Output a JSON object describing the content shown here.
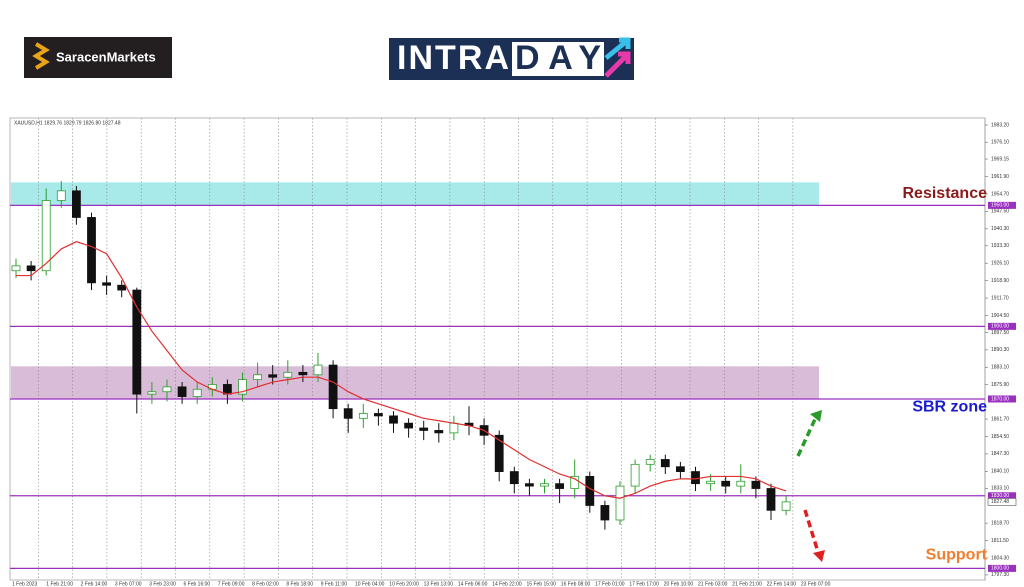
{
  "brand": {
    "name": "SaracenMarkets",
    "banner_left": "INTRA",
    "banner_right": "DAY"
  },
  "chart_data": {
    "type": "candlestick",
    "title": "XAUUSD,H1  1829.76 1829.79 1826.80 1827.48",
    "categories": [
      "1 Feb 2023",
      "1 Feb 21:00",
      "2 Feb 14:00",
      "3 Feb 07:00",
      "3 Feb 23:00",
      "6 Feb 16:00",
      "7 Feb 09:00",
      "8 Feb 02:00",
      "8 Feb 18:00",
      "9 Feb 11:00",
      "10 Feb 04:00",
      "10 Feb 20:00",
      "13 Feb 13:00",
      "14 Feb 06:00",
      "14 Feb 22:00",
      "15 Feb 15:00",
      "16 Feb 08:00",
      "17 Feb 01:00",
      "17 Feb 17:00",
      "20 Feb 10:00",
      "21 Feb 03:00",
      "21 Feb 21:00",
      "22 Feb 14:00",
      "23 Feb 07:00"
    ],
    "open": [
      1923,
      1925,
      1923,
      1952,
      1956,
      1945,
      1918,
      1917,
      1915,
      1872,
      1873,
      1875,
      1871,
      1874,
      1876,
      1872,
      1878,
      1880,
      1879,
      1881,
      1880,
      1884,
      1866,
      1862,
      1864,
      1863,
      1860,
      1858,
      1857,
      1856,
      1860,
      1859,
      1855,
      1840,
      1835,
      1834,
      1835,
      1833,
      1838,
      1826,
      1820,
      1834,
      1843,
      1845,
      1842,
      1840,
      1835,
      1836,
      1834,
      1836,
      1833,
      1824
    ],
    "high": [
      1928,
      1927,
      1957,
      1960,
      1958,
      1947,
      1921,
      1919,
      1916,
      1877,
      1878,
      1877,
      1877,
      1879,
      1878,
      1881,
      1885,
      1884,
      1886,
      1884,
      1889,
      1886,
      1868,
      1868,
      1866,
      1865,
      1862,
      1861,
      1860,
      1863,
      1867,
      1862,
      1857,
      1842,
      1837,
      1837,
      1837,
      1845,
      1840,
      1828,
      1836,
      1845,
      1847,
      1847,
      1844,
      1842,
      1839,
      1838,
      1843,
      1838,
      1835,
      1830
    ],
    "low": [
      1920,
      1919,
      1921,
      1949,
      1942,
      1915,
      1913,
      1912,
      1864,
      1868,
      1869,
      1868,
      1868,
      1871,
      1868,
      1869,
      1875,
      1876,
      1876,
      1877,
      1877,
      1862,
      1856,
      1858,
      1859,
      1856,
      1854,
      1853,
      1852,
      1853,
      1855,
      1851,
      1836,
      1831,
      1830,
      1831,
      1827,
      1829,
      1823,
      1816,
      1818,
      1831,
      1840,
      1839,
      1837,
      1832,
      1832,
      1831,
      1831,
      1829,
      1820,
      1822
    ],
    "close": [
      1925,
      1923,
      1952,
      1956,
      1945,
      1918,
      1917,
      1915,
      1872,
      1873,
      1875,
      1871,
      1874,
      1876,
      1872,
      1878,
      1880,
      1879,
      1881,
      1880,
      1884,
      1866,
      1862,
      1864,
      1863,
      1860,
      1858,
      1857,
      1856,
      1860,
      1859,
      1855,
      1840,
      1835,
      1834,
      1835,
      1833,
      1838,
      1826,
      1820,
      1834,
      1843,
      1845,
      1842,
      1840,
      1835,
      1836,
      1834,
      1836,
      1833,
      1824,
      1827.48
    ],
    "ma": [
      1921,
      1921,
      1926,
      1932,
      1935,
      1933,
      1930,
      1920,
      1908,
      1898,
      1890,
      1882,
      1877,
      1874,
      1872,
      1873,
      1875,
      1877,
      1878,
      1879,
      1879,
      1877,
      1873,
      1870,
      1868,
      1866,
      1864,
      1862,
      1861,
      1860,
      1859,
      1857,
      1853,
      1849,
      1845,
      1842,
      1839,
      1837,
      1833,
      1830,
      1829,
      1831,
      1834,
      1836,
      1837,
      1837,
      1838,
      1838,
      1838,
      1837,
      1834,
      1832
    ],
    "up_color": "#2e9e2e",
    "down_color": "#111111",
    "ma_color": "#e03030",
    "ylim": [
      1795.2,
      1986.1
    ],
    "yticks": [
      {
        "value": 1983.2,
        "label": "1983.20"
      },
      {
        "value": 1976.1,
        "label": "1976.10"
      },
      {
        "value": 1969.15,
        "label": "1969.15"
      },
      {
        "value": 1961.9,
        "label": "1961.90"
      },
      {
        "value": 1954.7,
        "label": "1954.70"
      },
      {
        "value": 1947.5,
        "label": "1947.50"
      },
      {
        "value": 1940.3,
        "label": "1940.30"
      },
      {
        "value": 1933.3,
        "label": "1933.30"
      },
      {
        "value": 1926.1,
        "label": "1926.10"
      },
      {
        "value": 1918.9,
        "label": "1918.90"
      },
      {
        "value": 1911.7,
        "label": "1911.70"
      },
      {
        "value": 1904.5,
        "label": "1904.50"
      },
      {
        "value": 1897.5,
        "label": "1897.50"
      },
      {
        "value": 1890.3,
        "label": "1890.30"
      },
      {
        "value": 1883.1,
        "label": "1883.10"
      },
      {
        "value": 1875.9,
        "label": "1875.90"
      },
      {
        "value": 1861.7,
        "label": "1861.70"
      },
      {
        "value": 1854.5,
        "label": "1854.50"
      },
      {
        "value": 1847.3,
        "label": "1847.30"
      },
      {
        "value": 1840.1,
        "label": "1840.10"
      },
      {
        "value": 1833.1,
        "label": "1833.10"
      },
      {
        "value": 1818.7,
        "label": "1818.70"
      },
      {
        "value": 1811.5,
        "label": "1811.50"
      },
      {
        "value": 1804.3,
        "label": "1804.30"
      },
      {
        "value": 1797.3,
        "label": "1797.30"
      }
    ],
    "levels": [
      {
        "value": 1950,
        "label": "1950.00"
      },
      {
        "value": 1900,
        "label": "1900.00"
      },
      {
        "value": 1870,
        "label": "1870.00"
      },
      {
        "value": 1830,
        "label": "1830.00"
      },
      {
        "value": 1800,
        "label": "1800.00"
      }
    ],
    "level_color": "#9b30c0",
    "last_price": {
      "value": 1827.48,
      "label": "1827.48"
    },
    "zones": [
      {
        "from": 1950,
        "to": 1959.5,
        "color": "#a8eaea"
      },
      {
        "from": 1870,
        "to": 1883.5,
        "color": "#d8bcd8"
      }
    ],
    "annotations": [
      {
        "text": "Resistance",
        "value": 1954.7,
        "color": "#8b1a1a"
      },
      {
        "text": "SBR zone",
        "value": 1866.5,
        "color": "#1a1ad0"
      },
      {
        "text": "Support",
        "value": 1805.5,
        "color": "#f08030"
      }
    ]
  }
}
